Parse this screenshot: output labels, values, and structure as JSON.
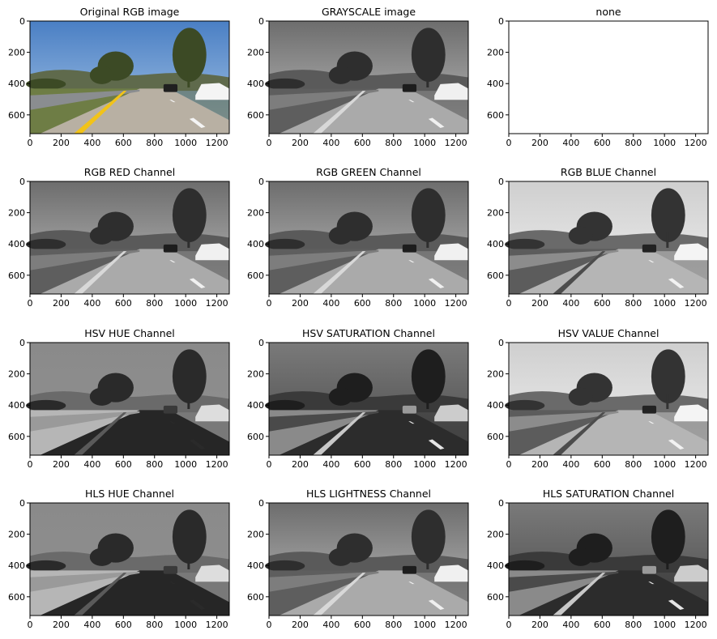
{
  "figure": {
    "x_ticks": [
      "0",
      "200",
      "400",
      "600",
      "800",
      "1000",
      "1200"
    ],
    "y_ticks": [
      "0",
      "200",
      "400",
      "600"
    ],
    "panels": [
      {
        "title": "Original RGB image",
        "style": "rgb"
      },
      {
        "title": "GRAYSCALE image",
        "style": "gray"
      },
      {
        "title": "none",
        "style": "blank"
      },
      {
        "title": "RGB RED Channel",
        "style": "gray"
      },
      {
        "title": "RGB GREEN Channel",
        "style": "gray"
      },
      {
        "title": "RGB BLUE Channel",
        "style": "gray-light"
      },
      {
        "title": "HSV HUE Channel",
        "style": "hue"
      },
      {
        "title": "HSV SATURATION Channel",
        "style": "sat"
      },
      {
        "title": "HSV VALUE Channel",
        "style": "gray-light"
      },
      {
        "title": "HLS HUE Channel",
        "style": "hue"
      },
      {
        "title": "HLS LIGHTNESS Channel",
        "style": "gray"
      },
      {
        "title": "HLS SATURATION Channel",
        "style": "sat"
      }
    ]
  }
}
